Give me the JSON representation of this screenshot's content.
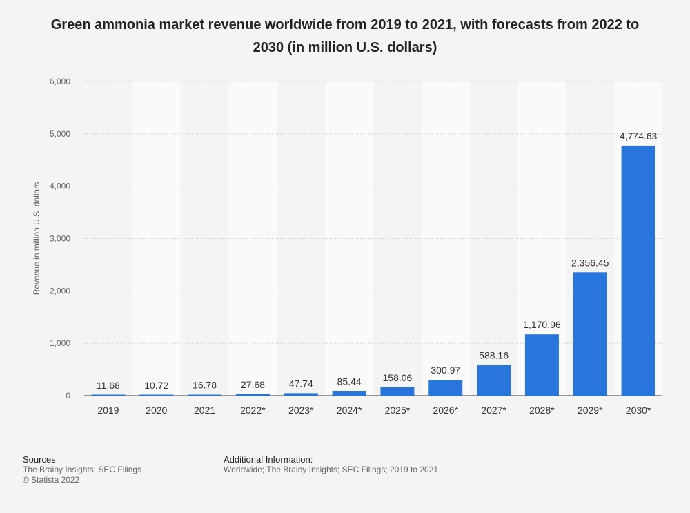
{
  "chart_data": {
    "type": "bar",
    "title": "Green ammonia market revenue worldwide from 2019 to 2021, with forecasts from 2022 to 2030 (in million U.S. dollars)",
    "categories": [
      "2019",
      "2020",
      "2021",
      "2022*",
      "2023*",
      "2024*",
      "2025*",
      "2026*",
      "2027*",
      "2028*",
      "2029*",
      "2030*"
    ],
    "values": [
      11.68,
      10.72,
      16.78,
      27.68,
      47.74,
      85.44,
      158.06,
      300.97,
      588.16,
      1170.96,
      2356.45,
      4774.63
    ],
    "value_labels": [
      "11.68",
      "10.72",
      "16.78",
      "27.68",
      "47.74",
      "85.44",
      "158.06",
      "300.97",
      "588.16",
      "1,170.96",
      "2,356.45",
      "4,774.63"
    ],
    "ylabel": "Revenue in million U.S. dollars",
    "xlabel": "",
    "ylim": [
      0,
      6000
    ],
    "yticks": [
      0,
      1000,
      2000,
      3000,
      4000,
      5000,
      6000
    ],
    "ytick_labels": [
      "0",
      "1,000",
      "2,000",
      "3,000",
      "4,000",
      "5,000",
      "6,000"
    ],
    "grid": true,
    "bar_color": "#2876dd"
  },
  "footer": {
    "sources_heading": "Sources",
    "sources_line1": "The Brainy Insights; SEC Filings",
    "sources_line2": "© Statista 2022",
    "additional_heading": "Additional Information:",
    "additional_text": "Worldwide; The Brainy Insights; SEC Filings; 2019 to 2021"
  }
}
